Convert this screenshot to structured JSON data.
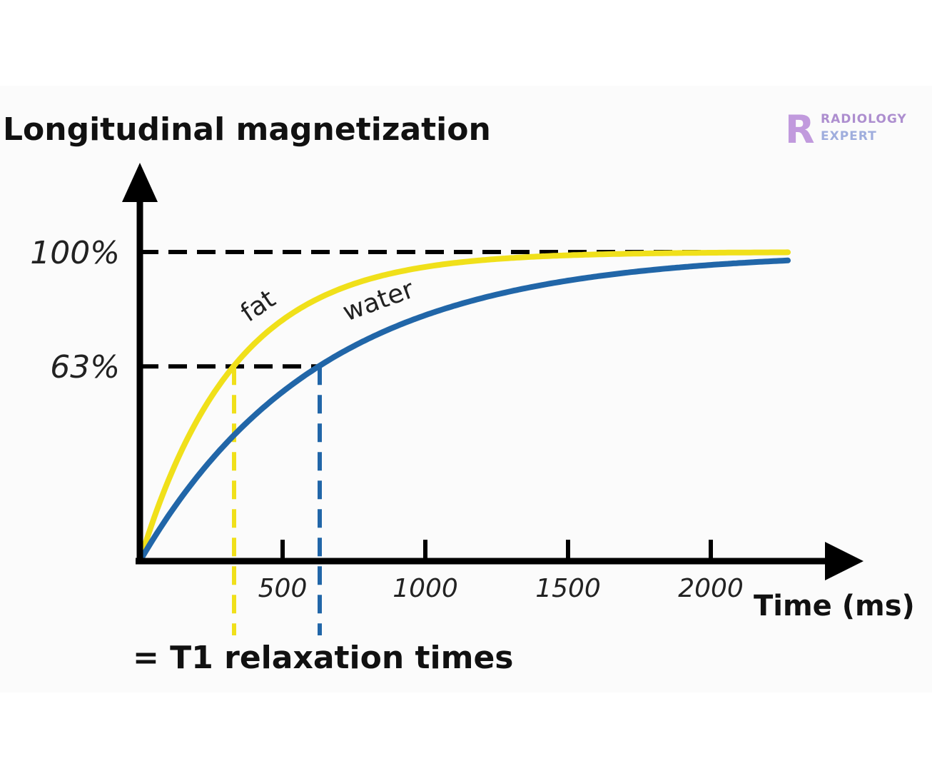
{
  "chart_data": {
    "type": "line",
    "title": "Longitudinal magnetization",
    "xlabel": "Time (ms)",
    "x_ticks": [
      500,
      1000,
      1500,
      2000
    ],
    "y_ticks": [
      {
        "label": "63%",
        "value": 63
      },
      {
        "label": "100%",
        "value": 100
      }
    ],
    "xlim": [
      0,
      2300
    ],
    "ylim": [
      0,
      100
    ],
    "series": [
      {
        "name": "fat",
        "t1": 330,
        "color": "#f0e01a"
      },
      {
        "name": "water",
        "t1": 630,
        "color": "#2166a8"
      }
    ],
    "t1_note": "= T1 relaxation times",
    "watermark": "RADIOLOGY EXPERT",
    "colors": {
      "axis": "#000000",
      "fat": "#f0e01a",
      "water": "#2166a8"
    }
  }
}
